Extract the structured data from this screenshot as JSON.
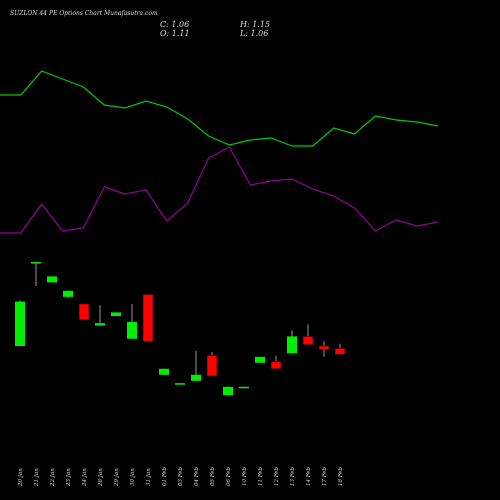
{
  "chart_data": [
    {
      "type": "line",
      "title": "SUZLON 44 PE Options Chart Munafasutra.com",
      "ohlc_labels": [
        "C: 1.06",
        "H: 1.15",
        "O: 1.11",
        "L: 1.06"
      ],
      "ylim": [
        0,
        200
      ],
      "series": [
        {
          "color": "#00cc00",
          "values": [
            155,
            155,
            179,
            171,
            163,
            145,
            142,
            149,
            143,
            131,
            114,
            105,
            110,
            112,
            104,
            104,
            122,
            116,
            134,
            130,
            128,
            124
          ]
        },
        {
          "color": "#990099",
          "values": [
            17,
            17,
            46,
            19,
            22,
            63,
            56,
            60,
            29,
            47,
            92,
            103,
            65,
            69,
            71,
            61,
            54,
            42,
            19,
            30,
            24,
            28
          ]
        }
      ]
    },
    {
      "type": "candlestick",
      "categories": [
        "20 Jan",
        "21 Jan",
        "22 Jan",
        "23 Jan",
        "24 Jan",
        "28 Jan",
        "29 Jan",
        "30 Jan",
        "31 Jan",
        "01 Feb",
        "03 Feb",
        "04 Feb",
        "05 Feb",
        "06 Feb",
        "10 Feb",
        "11 Feb",
        "12 Feb",
        "13 Feb",
        "14 Feb",
        "17 Feb",
        "18 Feb"
      ],
      "open": [
        1.13,
        1.82,
        1.66,
        1.54,
        1.48,
        1.3,
        1.38,
        1.19,
        1.56,
        0.89,
        0.81,
        0.84,
        1.05,
        0.72,
        0.78,
        0.99,
        1.0,
        1.07,
        1.21,
        1.13,
        1.11
      ],
      "close": [
        1.5,
        1.83,
        1.71,
        1.59,
        1.35,
        1.32,
        1.41,
        1.33,
        1.17,
        0.94,
        0.82,
        0.89,
        0.88,
        0.79,
        0.79,
        1.04,
        0.94,
        1.21,
        1.14,
        1.1,
        1.06
      ],
      "high": [
        1.51,
        1.83,
        1.71,
        1.59,
        1.48,
        1.47,
        1.41,
        1.48,
        1.56,
        0.94,
        0.82,
        1.09,
        1.08,
        0.79,
        0.79,
        1.04,
        1.05,
        1.26,
        1.31,
        1.17,
        1.15
      ],
      "low": [
        1.13,
        1.63,
        1.66,
        1.53,
        1.35,
        1.3,
        1.38,
        1.19,
        1.17,
        0.89,
        0.81,
        0.84,
        0.88,
        0.72,
        0.78,
        0.99,
        0.94,
        1.07,
        1.14,
        1.04,
        1.06
      ],
      "up_color": "#00ee00",
      "down_color": "#ff0000",
      "ylim": [
        0.68,
        1.88
      ]
    }
  ]
}
